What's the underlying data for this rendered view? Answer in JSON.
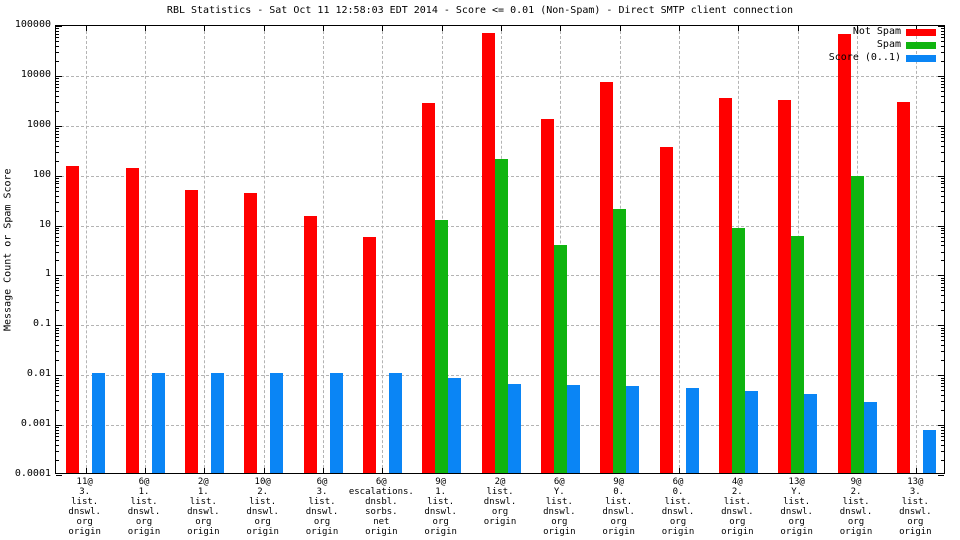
{
  "title": "RBL Statistics - Sat Oct 11 12:58:03 EDT 2014 - Score <= 0.01 (Non-Spam) - Direct SMTP client connection",
  "colors": {
    "not_spam": "#ff0000",
    "spam": "#0fb40f",
    "score": "#0a85f5",
    "grid": "#b4b4b4",
    "axis": "#000000",
    "background": "#ffffff"
  },
  "legend": [
    {
      "label": "Not Spam",
      "color": "#ff0000"
    },
    {
      "label": "Spam",
      "color": "#0fb40f"
    },
    {
      "label": "Score (0..1)",
      "color": "#0a85f5"
    }
  ],
  "chart_data": {
    "type": "bar",
    "yscale": "log",
    "ylabel": "Message Count or Spam Score",
    "xlabel": "",
    "ylim": [
      0.0001,
      100000
    ],
    "ytick_labels": [
      "100000",
      "10000",
      "1000",
      "100",
      "10",
      "1",
      "0.1",
      "0.01",
      "0.001",
      "0.0001"
    ],
    "grid": true,
    "legend_position": "top-right",
    "categories": [
      [
        "11@",
        "3.",
        "list.",
        "dnswl.",
        "org",
        "origin"
      ],
      [
        "6@",
        "1.",
        "list.",
        "dnswl.",
        "org",
        "origin"
      ],
      [
        "2@",
        "1.",
        "list.",
        "dnswl.",
        "org",
        "origin"
      ],
      [
        "10@",
        "2.",
        "list.",
        "dnswl.",
        "org",
        "origin"
      ],
      [
        "6@",
        "3.",
        "list.",
        "dnswl.",
        "org",
        "origin"
      ],
      [
        "6@",
        "escalations.",
        "dnsbl.",
        "sorbs.",
        "net",
        "origin"
      ],
      [
        "9@",
        "1.",
        "list.",
        "dnswl.",
        "org",
        "origin"
      ],
      [
        "2@",
        "list.",
        "dnswl.",
        "org",
        "origin"
      ],
      [
        "6@",
        "Y.",
        "list.",
        "dnswl.",
        "org",
        "origin"
      ],
      [
        "9@",
        "0.",
        "list.",
        "dnswl.",
        "org",
        "origin"
      ],
      [
        "6@",
        "0.",
        "list.",
        "dnswl.",
        "org",
        "origin"
      ],
      [
        "4@",
        "2.",
        "list.",
        "dnswl.",
        "org",
        "origin"
      ],
      [
        "13@",
        "Y.",
        "list.",
        "dnswl.",
        "org",
        "origin"
      ],
      [
        "9@",
        "2.",
        "list.",
        "dnswl.",
        "org",
        "origin"
      ],
      [
        "13@",
        "3.",
        "list.",
        "dnswl.",
        "org",
        "origin"
      ]
    ],
    "series": [
      {
        "name": "Not Spam",
        "color": "#ff0000",
        "values": [
          140,
          130,
          47,
          41,
          14,
          5.5,
          2600,
          65000,
          1250,
          6800,
          350,
          3300,
          2950,
          62000,
          2700
        ]
      },
      {
        "name": "Spam",
        "color": "#0fb40f",
        "values": [
          null,
          null,
          null,
          null,
          null,
          null,
          12,
          200,
          3.8,
          20,
          null,
          8,
          5.6,
          90,
          null
        ]
      },
      {
        "name": "Score (0..1)",
        "color": "#0a85f5",
        "values": [
          0.01,
          0.01,
          0.01,
          0.01,
          0.01,
          0.01,
          0.008,
          0.0061,
          0.0058,
          0.0055,
          0.005,
          0.0044,
          0.0038,
          0.0027,
          0.00074
        ]
      }
    ]
  }
}
